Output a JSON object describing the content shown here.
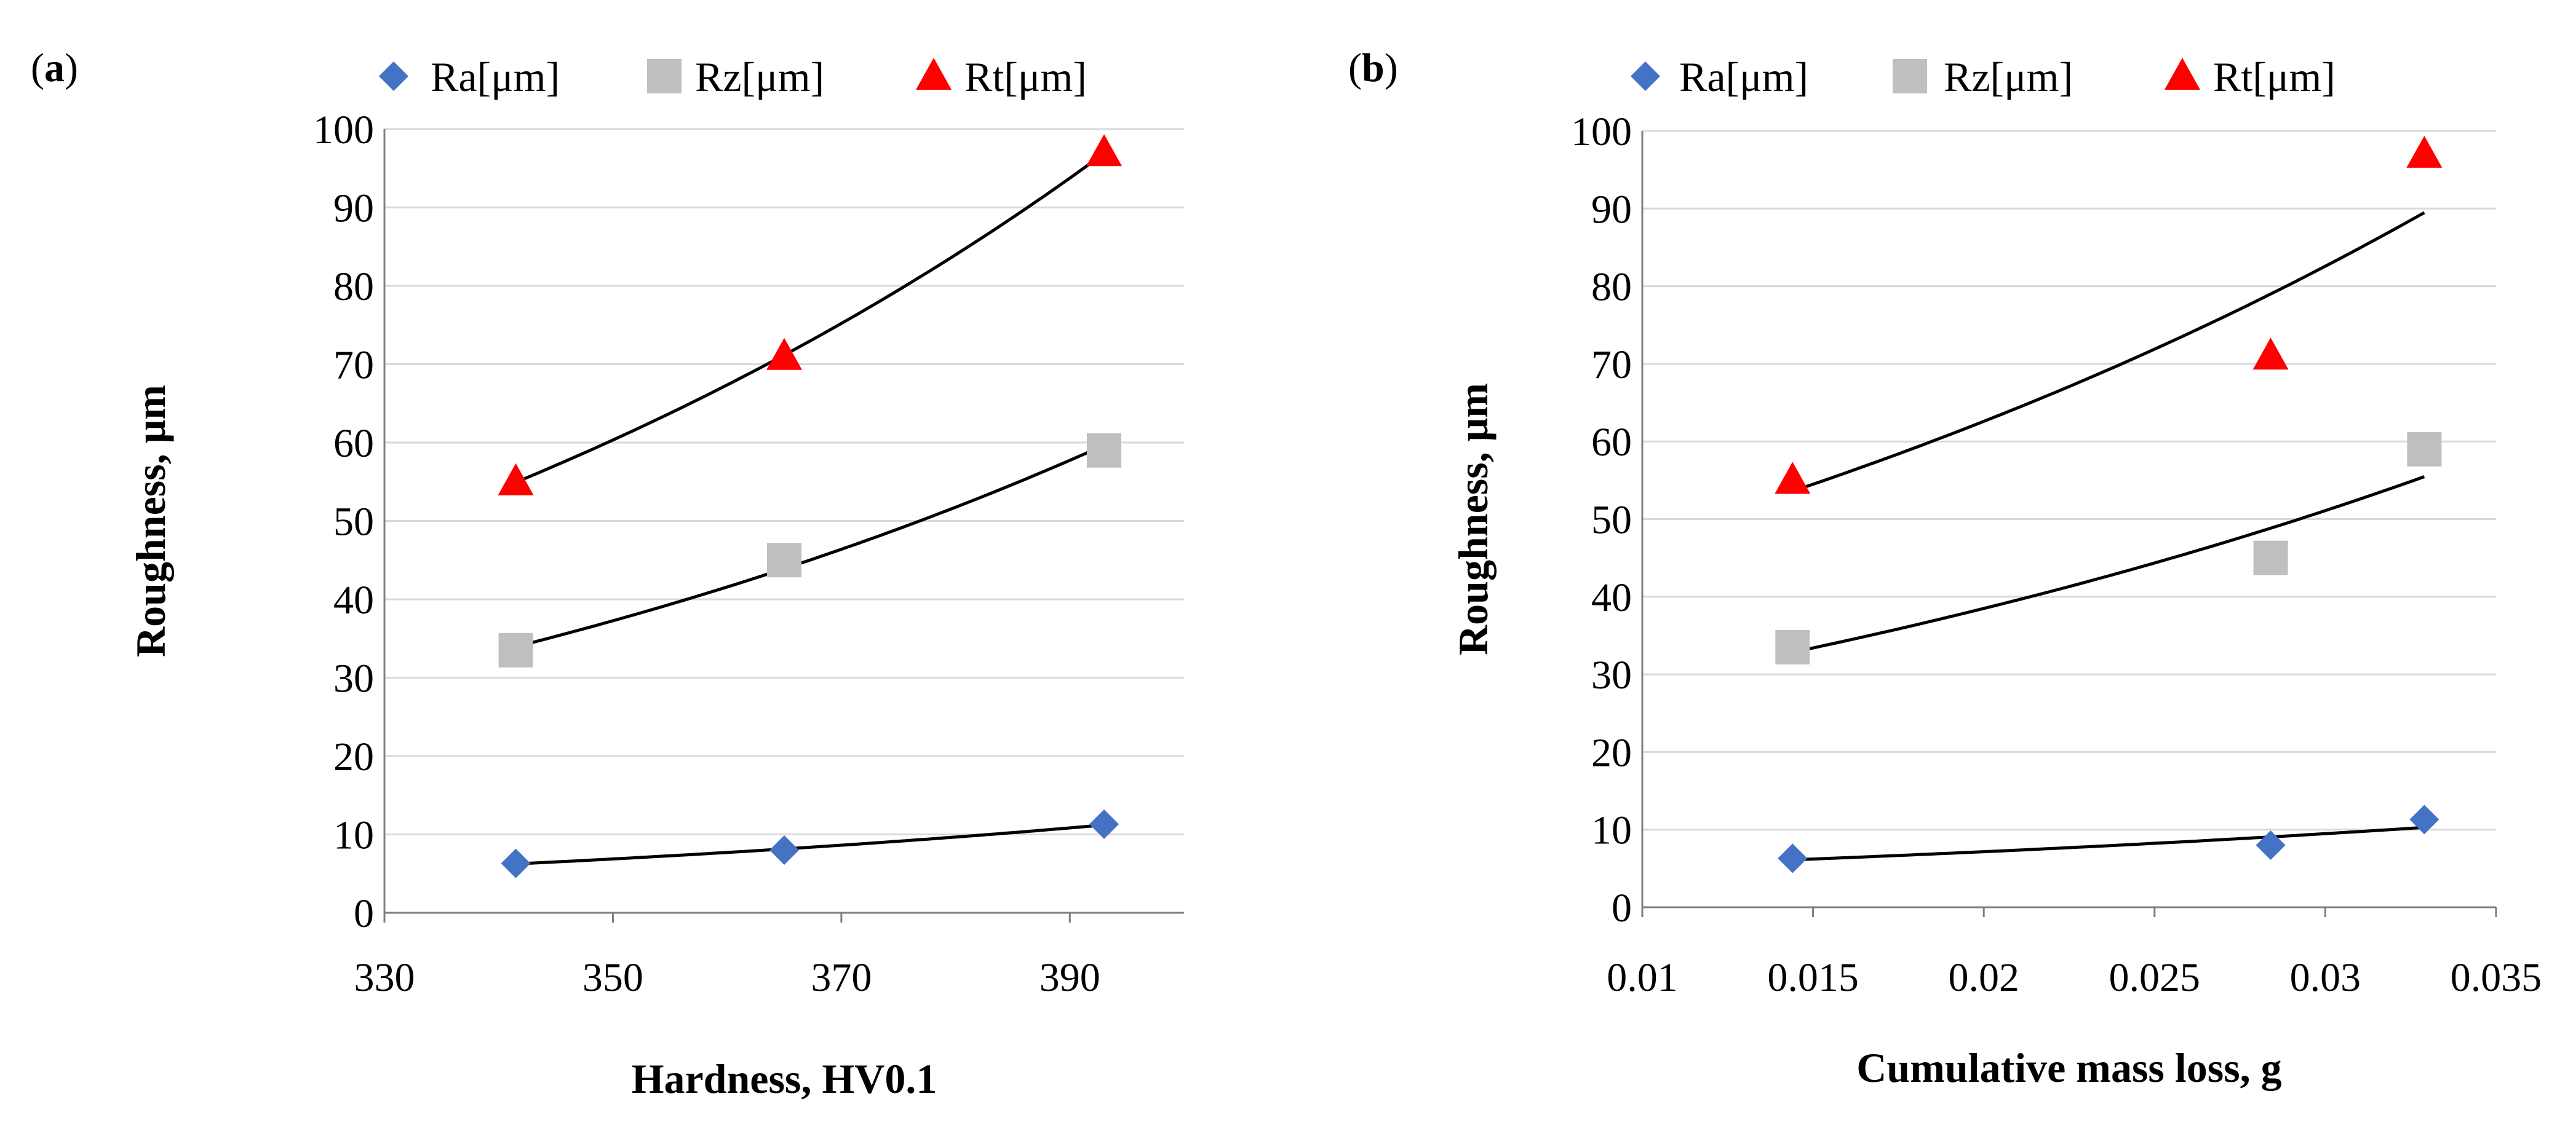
{
  "colors": {
    "ra": "#4472C4",
    "rz": "#BFBFBF",
    "rt": "#FF0000",
    "trend": "#000000",
    "grid": "#D9D9D9",
    "axis": "#7F7F7F"
  },
  "chart_data": [
    {
      "type": "scatter",
      "panel_label": "a",
      "xlabel": "Hardness, HV0.1",
      "ylabel": "Roughness, μm",
      "xlim": [
        330,
        400
      ],
      "ylim": [
        0,
        100
      ],
      "xticks": [
        330,
        350,
        370,
        390
      ],
      "xtick_labels": [
        "330",
        "350",
        "370",
        "390"
      ],
      "yticks": [
        0,
        10,
        20,
        30,
        40,
        50,
        60,
        70,
        80,
        90,
        100
      ],
      "ytick_labels": [
        "0",
        "10",
        "20",
        "30",
        "40",
        "50",
        "60",
        "70",
        "80",
        "90",
        "100"
      ],
      "legend_position": "top",
      "series": [
        {
          "key": "ra",
          "name": "Ra[μm]",
          "marker": "diamond",
          "x": [
            341.5,
            365,
            393
          ],
          "y": [
            6.3,
            8.0,
            11.3
          ],
          "trend": "exponential"
        },
        {
          "key": "rz",
          "name": "Rz[μm]",
          "marker": "square",
          "x": [
            341.5,
            365,
            393
          ],
          "y": [
            33.5,
            45.0,
            59.0
          ],
          "trend": "exponential"
        },
        {
          "key": "rt",
          "name": "Rt[μm]",
          "marker": "triangle",
          "x": [
            341.5,
            365,
            393
          ],
          "y": [
            55.0,
            71.0,
            97.0
          ],
          "trend": "exponential"
        }
      ]
    },
    {
      "type": "scatter",
      "panel_label": "b",
      "xlabel": "Cumulative mass loss, g",
      "ylabel": "Roughness, μm",
      "xlim": [
        0.01,
        0.035
      ],
      "ylim": [
        0,
        100
      ],
      "xticks": [
        0.01,
        0.015,
        0.02,
        0.025,
        0.03,
        0.035
      ],
      "xtick_labels": [
        "0.01",
        "0.015",
        "0.02",
        "0.025",
        "0.03",
        "0.035"
      ],
      "yticks": [
        0,
        10,
        20,
        30,
        40,
        50,
        60,
        70,
        80,
        90,
        100
      ],
      "ytick_labels": [
        "0",
        "10",
        "20",
        "30",
        "40",
        "50",
        "60",
        "70",
        "80",
        "90",
        "100"
      ],
      "legend_position": "top",
      "series": [
        {
          "key": "ra",
          "name": "Ra[μm]",
          "marker": "diamond",
          "x": [
            0.0144,
            0.0284,
            0.0329
          ],
          "y": [
            6.3,
            8.0,
            11.3
          ],
          "trend": "exponential"
        },
        {
          "key": "rz",
          "name": "Rz[μm]",
          "marker": "square",
          "x": [
            0.0144,
            0.0284,
            0.0329
          ],
          "y": [
            33.5,
            45.0,
            59.0
          ],
          "trend": "exponential"
        },
        {
          "key": "rt",
          "name": "Rt[μm]",
          "marker": "triangle",
          "x": [
            0.0144,
            0.0284,
            0.0329
          ],
          "y": [
            55.0,
            71.0,
            97.0
          ],
          "trend": "exponential"
        }
      ]
    }
  ]
}
